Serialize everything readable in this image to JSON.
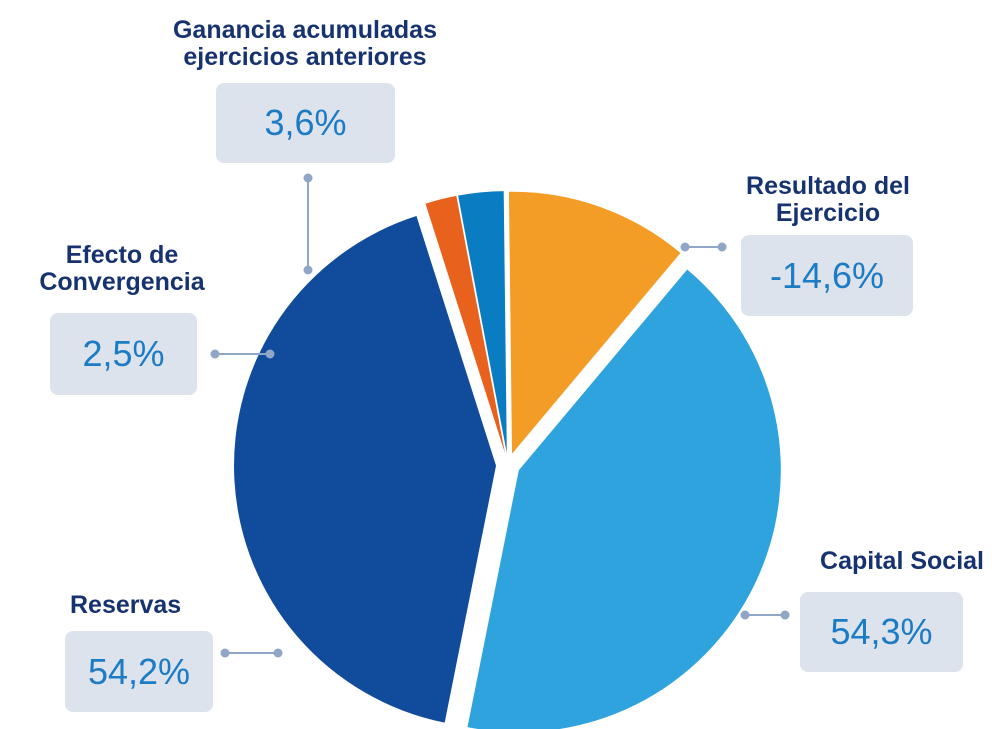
{
  "chart_data": {
    "type": "pie",
    "categories": [
      "Capital Social",
      "Reservas",
      "Efecto de Convergencia",
      "Ganancia acumuladas ejercicios anteriores",
      "Resultado del Ejercicio"
    ],
    "values": [
      54.3,
      54.2,
      2.5,
      3.6,
      -14.6
    ],
    "value_labels": [
      "54,3%",
      "54,2%",
      "2,5%",
      "3,6%",
      "-14,6%"
    ],
    "colors": [
      "#2ea3dd",
      "#114c9c",
      "#e8621e",
      "#0a7cc1",
      "#f39c26"
    ]
  }
}
